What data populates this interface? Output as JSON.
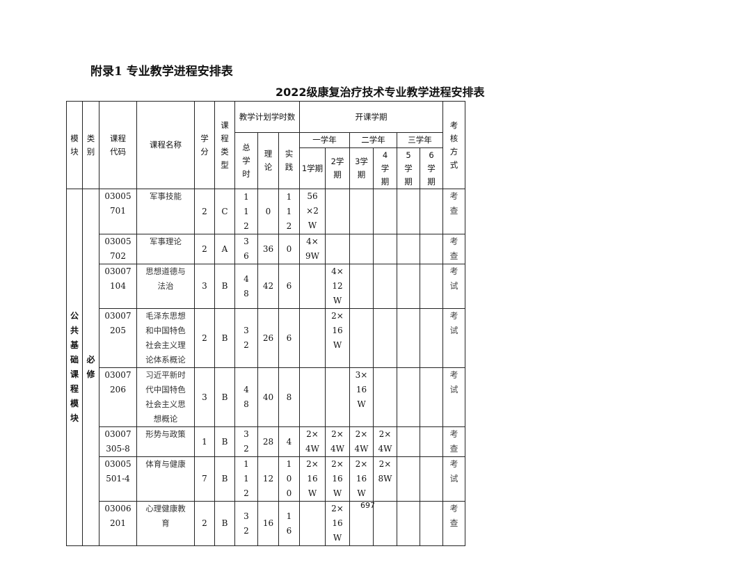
{
  "appendix_title": "附录1  专业教学进程安排表",
  "table_title": "2022级康复治疗技术专业教学进程安排表",
  "page_number": "697",
  "headers": {
    "module": "模块",
    "category": "类别",
    "code": "课程代码",
    "name": "课程名称",
    "credit": "学分",
    "type": "课程类型",
    "hours": "教学计划学时数",
    "semesters": "开课学期",
    "exam": "考核方式",
    "total": "总学时",
    "theory": "理论",
    "practice": "实践",
    "year1": "一学年",
    "year2": "二学年",
    "year3": "三学年",
    "s1": "1学期",
    "s2": "2学期",
    "s3": "3学期",
    "s4": "4学期",
    "s5": "5学期",
    "s6": "6学期"
  },
  "module_name": "公共基础课程模块",
  "category_name": "必修",
  "rows": [
    {
      "code": "03005701",
      "name": "军事技能",
      "credit": "2",
      "type": "C",
      "total": "112",
      "theory": "0",
      "practice": "112",
      "s": [
        "56×2W",
        "",
        "",
        "",
        "",
        ""
      ],
      "exam": "考查"
    },
    {
      "code": "03005702",
      "name": "军事理论",
      "credit": "2",
      "type": "A",
      "total": "36",
      "theory": "36",
      "practice": "0",
      "s": [
        "4×9W",
        "",
        "",
        "",
        "",
        ""
      ],
      "exam": "考查"
    },
    {
      "code": "03007104",
      "name": "思想道德与法治",
      "credit": "3",
      "type": "B",
      "total": "48",
      "theory": "42",
      "practice": "6",
      "s": [
        "",
        "4×12W",
        "",
        "",
        "",
        ""
      ],
      "exam": "考试"
    },
    {
      "code": "03007205",
      "name": "毛泽东思想和中国特色社会主义理论体系概论",
      "credit": "2",
      "type": "B",
      "total": "32",
      "theory": "26",
      "practice": "6",
      "s": [
        "",
        "2×16W",
        "",
        "",
        "",
        ""
      ],
      "exam": "考试"
    },
    {
      "code": "03007206",
      "name": "习近平新时代中国特色社会主义思想概论",
      "credit": "3",
      "type": "B",
      "total": "48",
      "theory": "40",
      "practice": "8",
      "s": [
        "",
        "",
        "3×16W",
        "",
        "",
        ""
      ],
      "exam": "考试"
    },
    {
      "code": "03007305-8",
      "name": "形势与政策",
      "credit": "1",
      "type": "B",
      "total": "32",
      "theory": "28",
      "practice": "4",
      "s": [
        "2×4W",
        "2×4W",
        "2×4W",
        "2×4W",
        "",
        ""
      ],
      "exam": "考查"
    },
    {
      "code": "03005501-4",
      "name": "体育与健康",
      "credit": "7",
      "type": "B",
      "total": "112",
      "theory": "12",
      "practice": "100",
      "s": [
        "2×16W",
        "2×16W",
        "2×16W",
        "2×8W",
        "",
        ""
      ],
      "exam": "考试"
    },
    {
      "code": "03006201",
      "name": "心理健康教育",
      "credit": "2",
      "type": "B",
      "total": "32",
      "theory": "16",
      "practice": "16",
      "s": [
        "",
        "2×16W",
        "",
        "",
        "",
        ""
      ],
      "exam": "考查"
    }
  ]
}
